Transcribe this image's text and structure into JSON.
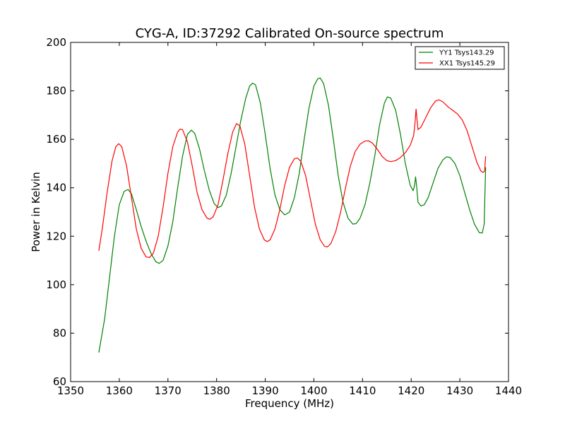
{
  "chart_data": {
    "type": "line",
    "title": "CYG-A, ID:37292 Calibrated On-source spectrum",
    "xlabel": "Frequency (MHz)",
    "ylabel": "Power in Kelvin",
    "xlim": [
      1350,
      1440
    ],
    "ylim": [
      60,
      200
    ],
    "xticks": [
      1350,
      1360,
      1370,
      1380,
      1390,
      1400,
      1410,
      1420,
      1430,
      1440
    ],
    "yticks": [
      60,
      80,
      100,
      120,
      140,
      160,
      180,
      200
    ],
    "grid": false,
    "legend_position": "top-right",
    "series": [
      {
        "name": "YY1 Tsys143.29",
        "color": "#008000",
        "points": [
          [
            1355.8,
            72
          ],
          [
            1357,
            86
          ],
          [
            1358,
            103
          ],
          [
            1359,
            120
          ],
          [
            1360,
            133
          ],
          [
            1361,
            138.5
          ],
          [
            1361.8,
            139.3
          ],
          [
            1362.5,
            137.5
          ],
          [
            1363.5,
            131
          ],
          [
            1364.5,
            124
          ],
          [
            1365.5,
            118
          ],
          [
            1366.5,
            113
          ],
          [
            1367.5,
            109.5
          ],
          [
            1368.2,
            108.8
          ],
          [
            1369,
            110
          ],
          [
            1370,
            116
          ],
          [
            1371,
            126
          ],
          [
            1372,
            140
          ],
          [
            1373,
            153
          ],
          [
            1374,
            162
          ],
          [
            1374.8,
            163.8
          ],
          [
            1375.5,
            162.5
          ],
          [
            1376.5,
            156
          ],
          [
            1377.5,
            147
          ],
          [
            1378.5,
            139
          ],
          [
            1379.5,
            133.5
          ],
          [
            1380.3,
            131.8
          ],
          [
            1381,
            132.5
          ],
          [
            1382,
            137
          ],
          [
            1383,
            146
          ],
          [
            1384,
            157
          ],
          [
            1385,
            168
          ],
          [
            1386,
            177
          ],
          [
            1386.8,
            182
          ],
          [
            1387.4,
            183.2
          ],
          [
            1388,
            182.5
          ],
          [
            1389,
            175
          ],
          [
            1390,
            162
          ],
          [
            1391,
            148
          ],
          [
            1392,
            137
          ],
          [
            1393,
            131
          ],
          [
            1394,
            128.8
          ],
          [
            1395,
            130
          ],
          [
            1396,
            136
          ],
          [
            1397,
            146
          ],
          [
            1398,
            160
          ],
          [
            1399,
            173
          ],
          [
            1400,
            182
          ],
          [
            1400.8,
            185
          ],
          [
            1401.3,
            185.3
          ],
          [
            1402,
            183
          ],
          [
            1403,
            174
          ],
          [
            1404,
            160
          ],
          [
            1405,
            145
          ],
          [
            1406,
            134
          ],
          [
            1407,
            127.5
          ],
          [
            1408,
            125
          ],
          [
            1408.7,
            125.2
          ],
          [
            1409.5,
            127.5
          ],
          [
            1410.5,
            133
          ],
          [
            1411.5,
            142
          ],
          [
            1412.5,
            153
          ],
          [
            1413.5,
            166
          ],
          [
            1414.5,
            175
          ],
          [
            1415.1,
            177.5
          ],
          [
            1415.8,
            177
          ],
          [
            1416.8,
            172
          ],
          [
            1417.8,
            162
          ],
          [
            1418.8,
            150
          ],
          [
            1419.8,
            141
          ],
          [
            1420.4,
            138.8
          ],
          [
            1420.7,
            141
          ],
          [
            1420.9,
            144.5
          ],
          [
            1421.1,
            141
          ],
          [
            1421.4,
            134
          ],
          [
            1422,
            132.5
          ],
          [
            1422.7,
            133
          ],
          [
            1423.5,
            136
          ],
          [
            1424.5,
            142
          ],
          [
            1425.5,
            148
          ],
          [
            1426.5,
            151.5
          ],
          [
            1427.3,
            152.8
          ],
          [
            1428,
            152.5
          ],
          [
            1429,
            150
          ],
          [
            1430,
            145
          ],
          [
            1431,
            138
          ],
          [
            1432,
            131
          ],
          [
            1433,
            125
          ],
          [
            1434,
            121.5
          ],
          [
            1434.6,
            121.3
          ],
          [
            1435,
            125
          ],
          [
            1435.3,
            148.5
          ]
        ]
      },
      {
        "name": "XX1 Tsys145.29",
        "color": "#ff0000",
        "points": [
          [
            1355.8,
            114
          ],
          [
            1356.5,
            123
          ],
          [
            1357.5,
            138
          ],
          [
            1358.5,
            151
          ],
          [
            1359.3,
            157
          ],
          [
            1359.9,
            158.2
          ],
          [
            1360.5,
            157
          ],
          [
            1361.5,
            149
          ],
          [
            1362.5,
            136
          ],
          [
            1363.5,
            123
          ],
          [
            1364.5,
            115
          ],
          [
            1365.5,
            111.5
          ],
          [
            1366.2,
            111.2
          ],
          [
            1367,
            113
          ],
          [
            1368,
            120
          ],
          [
            1369,
            132
          ],
          [
            1370,
            146
          ],
          [
            1371,
            157
          ],
          [
            1372,
            163
          ],
          [
            1372.5,
            164.2
          ],
          [
            1373,
            164
          ],
          [
            1374,
            159
          ],
          [
            1375,
            149
          ],
          [
            1376,
            138
          ],
          [
            1377,
            131
          ],
          [
            1378,
            127.5
          ],
          [
            1378.6,
            127
          ],
          [
            1379.3,
            128
          ],
          [
            1380.3,
            133
          ],
          [
            1381.3,
            143
          ],
          [
            1382.3,
            154
          ],
          [
            1383.3,
            163
          ],
          [
            1384.1,
            166.5
          ],
          [
            1384.8,
            165.5
          ],
          [
            1385.8,
            158
          ],
          [
            1386.8,
            145
          ],
          [
            1387.8,
            132
          ],
          [
            1388.8,
            123
          ],
          [
            1389.8,
            118.5
          ],
          [
            1390.4,
            117.8
          ],
          [
            1391,
            118.5
          ],
          [
            1392,
            123
          ],
          [
            1393,
            131
          ],
          [
            1394,
            141
          ],
          [
            1395,
            148.5
          ],
          [
            1396,
            152
          ],
          [
            1396.6,
            152.3
          ],
          [
            1397.3,
            151
          ],
          [
            1398.3,
            145
          ],
          [
            1399.3,
            135
          ],
          [
            1400.3,
            125
          ],
          [
            1401.3,
            118.5
          ],
          [
            1402.2,
            115.8
          ],
          [
            1402.8,
            115.6
          ],
          [
            1403.5,
            117
          ],
          [
            1404.5,
            122
          ],
          [
            1405.5,
            130
          ],
          [
            1406.5,
            140
          ],
          [
            1407.5,
            149
          ],
          [
            1408.5,
            155
          ],
          [
            1409.5,
            158
          ],
          [
            1410.5,
            159.3
          ],
          [
            1411.2,
            159.4
          ],
          [
            1412,
            158.5
          ],
          [
            1413,
            156
          ],
          [
            1414,
            153
          ],
          [
            1415,
            151.2
          ],
          [
            1415.8,
            150.8
          ],
          [
            1416.8,
            151.2
          ],
          [
            1417.8,
            152.5
          ],
          [
            1418.8,
            154.5
          ],
          [
            1419.8,
            157.5
          ],
          [
            1420.5,
            161.5
          ],
          [
            1420.8,
            167
          ],
          [
            1421,
            172.5
          ],
          [
            1421.2,
            168
          ],
          [
            1421.4,
            164
          ],
          [
            1422,
            165
          ],
          [
            1423,
            169
          ],
          [
            1424,
            173
          ],
          [
            1425,
            175.8
          ],
          [
            1425.7,
            176.3
          ],
          [
            1426.5,
            175.5
          ],
          [
            1427.5,
            173.5
          ],
          [
            1428.5,
            172
          ],
          [
            1429.5,
            170.5
          ],
          [
            1430.5,
            168
          ],
          [
            1431.5,
            163.5
          ],
          [
            1432.5,
            157
          ],
          [
            1433.5,
            150.5
          ],
          [
            1434.3,
            147
          ],
          [
            1434.8,
            146.3
          ],
          [
            1435.1,
            147
          ],
          [
            1435.3,
            153
          ]
        ]
      }
    ]
  }
}
